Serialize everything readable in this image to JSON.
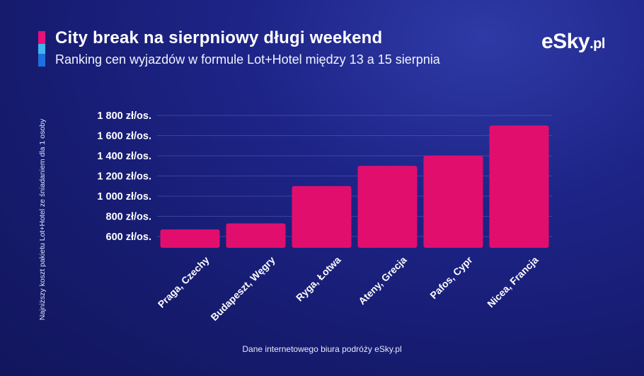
{
  "header": {
    "title": "City break na sierpniowy długi weekend",
    "subtitle": "Ranking cen wyjazdów w formule Lot+Hotel między 13 a 15 sierpnia",
    "accent_colors": [
      "#e8107a",
      "#3fb6ee",
      "#1f6fe0"
    ]
  },
  "logo": {
    "name": "eSky",
    "tld": ".pl"
  },
  "footer": {
    "source": "Dane internetowego biura podróży eSky.pl"
  },
  "colors": {
    "bar": "#e10e6e",
    "grid": "#6b76c9"
  },
  "chart_data": {
    "type": "bar",
    "categories": [
      "Praga, Czechy",
      "Budapeszt, Węgry",
      "Ryga, Łotwa",
      "Ateny, Grecja",
      "Pafos, Cypr",
      "Nicea, Francja"
    ],
    "values": [
      670,
      730,
      1100,
      1300,
      1400,
      1700
    ],
    "ylabel": "Najniższy koszt pakietu Lot+Hotel ze śniadaniem dla 1 osoby",
    "ylim": [
      500,
      1800
    ],
    "yticks": [
      600,
      800,
      1000,
      1200,
      1400,
      1600,
      1800
    ],
    "ytick_labels": [
      "600 zł/os.",
      "800 zł/os.",
      "1 000 zł/os.",
      "1 200 zł/os.",
      "1 400 zł/os.",
      "1 600 zł/os.",
      "1 800 zł/os."
    ],
    "grid": true,
    "legend": "none"
  }
}
